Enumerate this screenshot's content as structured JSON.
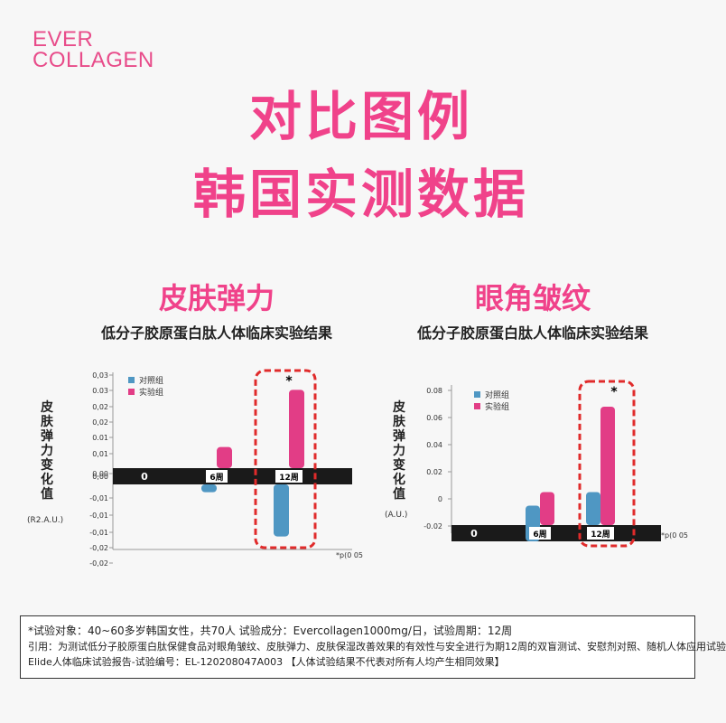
{
  "brand": {
    "line1": "EVER",
    "line2": "COLLAGEN"
  },
  "header": {
    "title_line1": "对比图例",
    "title_line2": "韩国实测数据"
  },
  "panels": [
    {
      "title": "皮肤弹力",
      "subtitle": "低分子胶原蛋白肽人体临床实验结果"
    },
    {
      "title": "眼角皱纹",
      "subtitle": "低分子胶原蛋白肽人体临床实验结果"
    }
  ],
  "chart_data": [
    {
      "type": "bar",
      "ylabel": "皮肤弹力变化值",
      "unit": "(R2.A.U.)",
      "categories": [
        "0",
        "6周",
        "12周"
      ],
      "yticks": [
        "0,03",
        "0.03",
        "0,02",
        "0,02",
        "0.01",
        "0,01",
        "0,00",
        "-0,01",
        "-0,01",
        "-0,01",
        "-0,02",
        "-0,02"
      ],
      "ylim": [
        -0.025,
        0.03
      ],
      "series": [
        {
          "name": "对照组",
          "color": "#4f97c3",
          "values": [
            0,
            -0.003,
            -0.02
          ]
        },
        {
          "name": "实验组",
          "color": "#e23d86",
          "values": [
            0,
            0.007,
            0.026
          ]
        }
      ],
      "annotation": "*",
      "footnote": "*p(0 05"
    },
    {
      "type": "bar",
      "ylabel": "皮肤弹力变化值",
      "unit": "(A.U.)",
      "categories": [
        "0",
        "6周",
        "12周"
      ],
      "yticks": [
        "0.08",
        "0.06",
        "0.04",
        "0.02",
        "0",
        "-0.02"
      ],
      "ylim": [
        -0.02,
        0.08
      ],
      "series": [
        {
          "name": "对照组",
          "color": "#4f97c3",
          "values": [
            0,
            -0.005,
            0.005
          ]
        },
        {
          "name": "实验组",
          "color": "#e23d86",
          "values": [
            0,
            0.005,
            0.068
          ]
        }
      ],
      "annotation": "*",
      "footnote": "*p(0 05"
    }
  ],
  "note": {
    "line1": "*试验对象：40~60多岁韩国女性，共70人   试验成分：Evercollagen1000mg/日，试验周期：12周",
    "line2": "引用：为测试低分子胶原蛋白肽保健食品对眼角皱纹、皮肤弹力、皮肤保湿改善效果的有效性与安全进行为期12周的双盲测试、安慰剂对照、随机人体应用试验",
    "line3": "Elide人体临床试验报告-试验编号：EL-120208047A003 【人体试验结果不代表对所有人均产生相同效果】"
  },
  "colors": {
    "accent": "#f0428a",
    "control": "#4f97c3",
    "test": "#e23d86",
    "highlight": "#e02b2b"
  }
}
